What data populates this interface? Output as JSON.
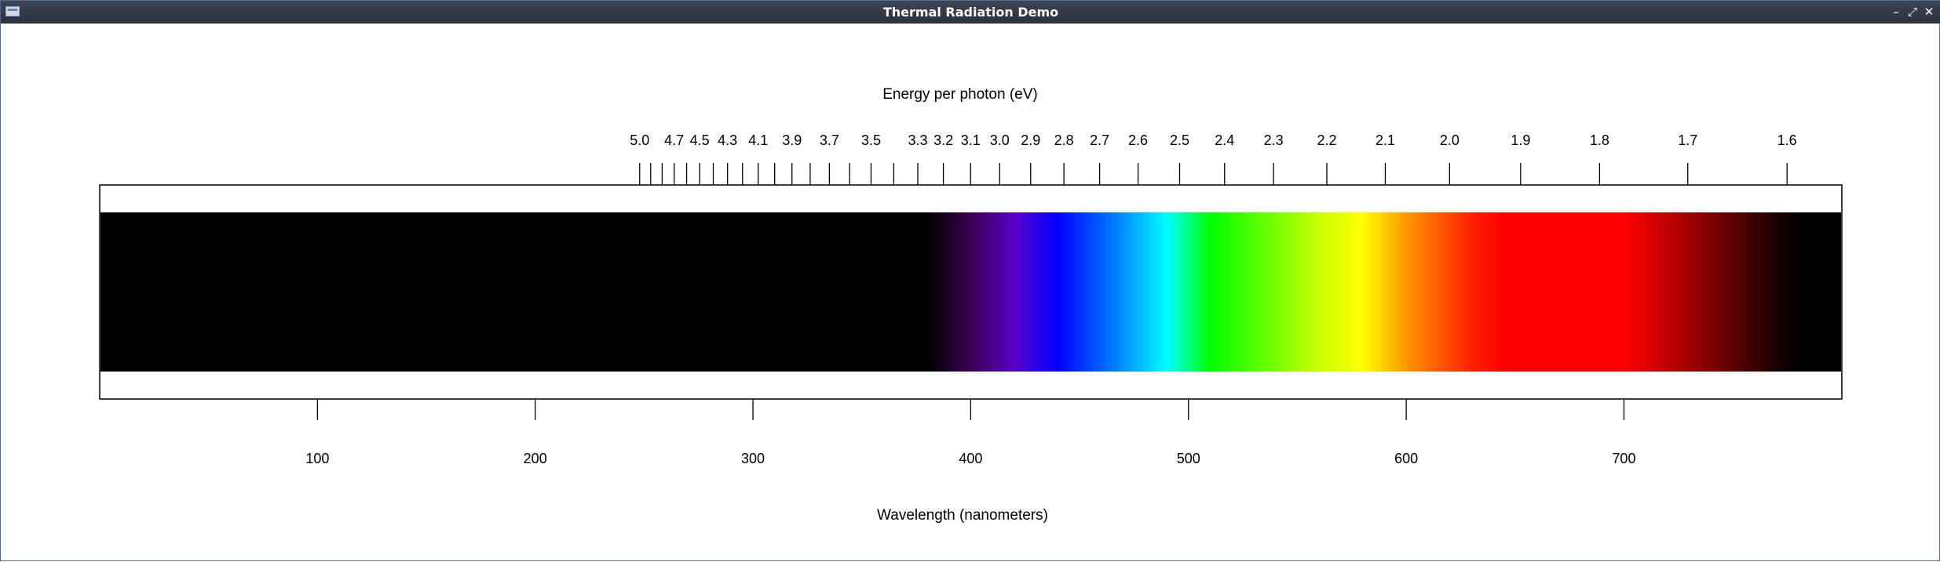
{
  "window": {
    "title": "Thermal Radiation Demo",
    "minimize_glyph": "–",
    "maximize_glyph": "⤢",
    "close_glyph": "✕"
  },
  "chart_data": {
    "type": "spectrum",
    "top_axis": {
      "label": "Energy per photon (eV)",
      "tick_labels": [
        "5.0",
        "4.7",
        "4.5",
        "4.3",
        "4.1",
        "3.9",
        "3.7",
        "3.5",
        "3.3",
        "3.2",
        "3.1",
        "3.0",
        "2.9",
        "2.8",
        "2.7",
        "2.6",
        "2.5",
        "2.4",
        "2.3",
        "2.2",
        "2.1",
        "2.0",
        "1.9",
        "1.8",
        "1.7",
        "1.6"
      ],
      "tick_values": [
        5.0,
        4.9,
        4.8,
        4.7,
        4.6,
        4.5,
        4.4,
        4.3,
        4.2,
        4.1,
        4.0,
        3.9,
        3.8,
        3.7,
        3.6,
        3.5,
        3.4,
        3.3,
        3.2,
        3.1,
        3.0,
        2.9,
        2.8,
        2.7,
        2.6,
        2.5,
        2.4,
        2.3,
        2.2,
        2.1,
        2.0,
        1.9,
        1.8,
        1.7,
        1.6
      ]
    },
    "bottom_axis": {
      "label": "Wavelength (nanometers)",
      "tick_values": [
        100,
        200,
        300,
        400,
        500,
        600,
        700
      ],
      "tick_labels": [
        "100",
        "200",
        "300",
        "400",
        "500",
        "600",
        "700"
      ]
    },
    "wavelength_range": [
      0,
      800
    ],
    "visible_band": {
      "start_nm": 380,
      "end_nm": 780,
      "color_stops": [
        {
          "nm": 380,
          "color": "#000000"
        },
        {
          "nm": 400,
          "color": "#3a0052"
        },
        {
          "nm": 420,
          "color": "#5a00c8"
        },
        {
          "nm": 440,
          "color": "#0000ff"
        },
        {
          "nm": 470,
          "color": "#0090ff"
        },
        {
          "nm": 490,
          "color": "#00ffff"
        },
        {
          "nm": 505,
          "color": "#00ff40"
        },
        {
          "nm": 510,
          "color": "#00ff00"
        },
        {
          "nm": 560,
          "color": "#c8ff00"
        },
        {
          "nm": 580,
          "color": "#ffff00"
        },
        {
          "nm": 600,
          "color": "#ff9600"
        },
        {
          "nm": 630,
          "color": "#ff2000"
        },
        {
          "nm": 645,
          "color": "#ff0000"
        },
        {
          "nm": 700,
          "color": "#ff0000"
        },
        {
          "nm": 730,
          "color": "#a00000"
        },
        {
          "nm": 760,
          "color": "#3a0000"
        },
        {
          "nm": 780,
          "color": "#000000"
        }
      ]
    }
  }
}
